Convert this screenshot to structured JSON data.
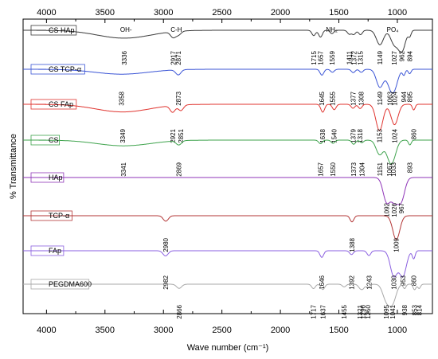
{
  "chart_data": {
    "type": "line",
    "xlabel": "Wave number (cm⁻¹)",
    "ylabel": "% Transmittance",
    "xlim": [
      4200,
      700
    ],
    "x_reversed": true,
    "x_ticks": [
      4000,
      3500,
      3000,
      2500,
      2000,
      1500,
      1000
    ],
    "x_tick_labels": [
      "4000",
      "3500",
      "3000",
      "2500",
      "2000",
      "1500",
      "1000"
    ],
    "grid": false,
    "legend": "per-series label boxes at left of each stacked curve",
    "group_labels": [
      {
        "text": "OH-",
        "x": 3320
      },
      {
        "text": "C-H",
        "x": 2890
      },
      {
        "text": "NH₂",
        "x": 1560
      },
      {
        "text": "PO₄",
        "x": 1040
      }
    ],
    "series": [
      {
        "name": "CS HAp",
        "color": "#3a3a3a",
        "peaks": [
          3336,
          2917,
          2871,
          1715,
          1657,
          1559,
          1411,
          1372,
          1315,
          1149,
          1027,
          962,
          894
        ]
      },
      {
        "name": "CS TCP-α",
        "color": "#3b55d6",
        "peaks": [
          3358,
          2873,
          1645,
          1555,
          1377,
          1308,
          1149,
          1063,
          1024,
          944,
          895
        ]
      },
      {
        "name": "CS FAp",
        "color": "#e0342f",
        "peaks": [
          3349,
          2921,
          2851,
          1638,
          1540,
          1379,
          1318,
          1153,
          1024,
          860
        ]
      },
      {
        "name": "CS",
        "color": "#3fa34d",
        "peaks": [
          3341,
          2869,
          1657,
          1550,
          1373,
          1304,
          1151,
          1067,
          1033,
          893
        ]
      },
      {
        "name": "HAp",
        "color": "#8f35b8",
        "peaks": [
          1092,
          1026,
          967
        ]
      },
      {
        "name": "TCP-α",
        "color": "#b33636",
        "peaks": [
          2980,
          1388,
          1009
        ]
      },
      {
        "name": "FAp",
        "color": "#8a5fe0",
        "peaks": [
          2982,
          1646,
          1392,
          1243,
          1030,
          953,
          860
        ]
      },
      {
        "name": "PEGDMA600",
        "color": "#a8a8a8",
        "peaks": [
          2866,
          1717,
          1637,
          1455,
          1321,
          1296,
          1250,
          1095,
          1041,
          938,
          853,
          814
        ]
      }
    ]
  }
}
